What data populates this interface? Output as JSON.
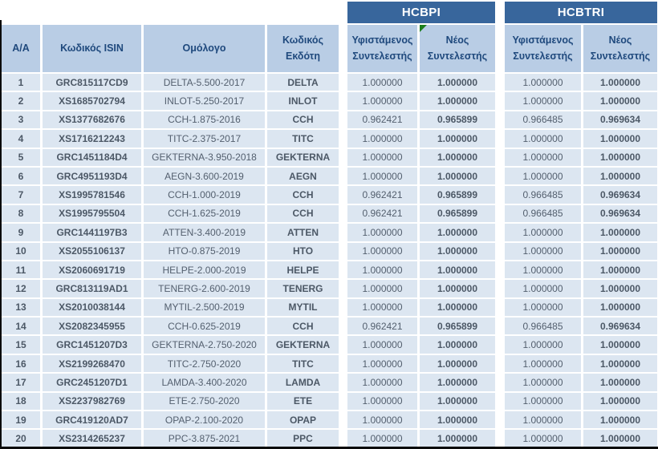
{
  "table": {
    "group_headers": [
      {
        "label": "HCBPI"
      },
      {
        "label": "HCBTRI"
      }
    ],
    "column_headers": {
      "aa": "Α/Α",
      "isin": "Κωδικός ISIN",
      "bond": "Ομόλογο",
      "issuer": "Κωδικός Εκδότη",
      "hcbpi_existing": "Υφιστάμενος Συντελεστής",
      "hcbpi_new": "Νέος Συντελεστής",
      "hcbtri_existing": "Υφιστάμενος Συντελεστής",
      "hcbtri_new": "Νέος Συντελεστής"
    },
    "indicator": {
      "name": "green-corner-triangle",
      "color": "#1B7E1B",
      "cell": "hcbpi_new"
    },
    "rows": [
      [
        "1",
        "GRC815117CD9",
        "DELTA-5.500-2017",
        "DELTA",
        "1.000000",
        "1.000000",
        "1.000000",
        "1.000000"
      ],
      [
        "2",
        "XS1685702794",
        "INLOT-5.250-2017",
        "INLOT",
        "1.000000",
        "1.000000",
        "1.000000",
        "1.000000"
      ],
      [
        "3",
        "XS1377682676",
        "CCH-1.875-2016",
        "CCH",
        "0.962421",
        "0.965899",
        "0.966485",
        "0.969634"
      ],
      [
        "4",
        "XS1716212243",
        "TITC-2.375-2017",
        "TITC",
        "1.000000",
        "1.000000",
        "1.000000",
        "1.000000"
      ],
      [
        "5",
        "GRC1451184D4",
        "GEKTERNA-3.950-2018",
        "GEKTERNA",
        "1.000000",
        "1.000000",
        "1.000000",
        "1.000000"
      ],
      [
        "6",
        "GRC4951193D4",
        "AEGN-3.600-2019",
        "AEGN",
        "1.000000",
        "1.000000",
        "1.000000",
        "1.000000"
      ],
      [
        "7",
        "XS1995781546",
        "CCH-1.000-2019",
        "CCH",
        "0.962421",
        "0.965899",
        "0.966485",
        "0.969634"
      ],
      [
        "8",
        "XS1995795504",
        "CCH-1.625-2019",
        "CCH",
        "0.962421",
        "0.965899",
        "0.966485",
        "0.969634"
      ],
      [
        "9",
        "GRC1441197B3",
        "ATTEN-3.400-2019",
        "ATTEN",
        "1.000000",
        "1.000000",
        "1.000000",
        "1.000000"
      ],
      [
        "10",
        "XS2055106137",
        "HTO-0.875-2019",
        "HTO",
        "1.000000",
        "1.000000",
        "1.000000",
        "1.000000"
      ],
      [
        "11",
        "XS2060691719",
        "HELPE-2.000-2019",
        "HELPE",
        "1.000000",
        "1.000000",
        "1.000000",
        "1.000000"
      ],
      [
        "12",
        "GRC813119AD1",
        "TENERG-2.600-2019",
        "TENERG",
        "1.000000",
        "1.000000",
        "1.000000",
        "1.000000"
      ],
      [
        "13",
        "XS2010038144",
        "MYTIL-2.500-2019",
        "MYTIL",
        "1.000000",
        "1.000000",
        "1.000000",
        "1.000000"
      ],
      [
        "14",
        "XS2082345955",
        "CCH-0.625-2019",
        "CCH",
        "0.962421",
        "0.965899",
        "0.966485",
        "0.969634"
      ],
      [
        "15",
        "GRC1451207D3",
        "GEKTERNA-2.750-2020",
        "GEKTERNA",
        "1.000000",
        "1.000000",
        "1.000000",
        "1.000000"
      ],
      [
        "16",
        "XS2199268470",
        "TITC-2.750-2020",
        "TITC",
        "1.000000",
        "1.000000",
        "1.000000",
        "1.000000"
      ],
      [
        "17",
        "GRC2451207D1",
        "LAMDA-3.400-2020",
        "LAMDA",
        "1.000000",
        "1.000000",
        "1.000000",
        "1.000000"
      ],
      [
        "18",
        "XS2237982769",
        "ETE-2.750-2020",
        "ETE",
        "1.000000",
        "1.000000",
        "1.000000",
        "1.000000"
      ],
      [
        "19",
        "GRC419120AD7",
        "OPAP-2.100-2020",
        "OPAP",
        "1.000000",
        "1.000000",
        "1.000000",
        "1.000000"
      ],
      [
        "20",
        "XS2314265237",
        "PPC-3.875-2021",
        "PPC",
        "1.000000",
        "1.000000",
        "1.000000",
        "1.000000"
      ]
    ]
  },
  "colors": {
    "group_header_bg": "#38669C",
    "group_header_text": "#FFFFFF",
    "column_header_bg": "#B9CDE5",
    "column_header_text": "#1F497D",
    "row_bg": "#DCE6F1",
    "row_text": "#535F6E",
    "indicator_green": "#1B7E1B",
    "outer_border": "#0B0B0B"
  }
}
